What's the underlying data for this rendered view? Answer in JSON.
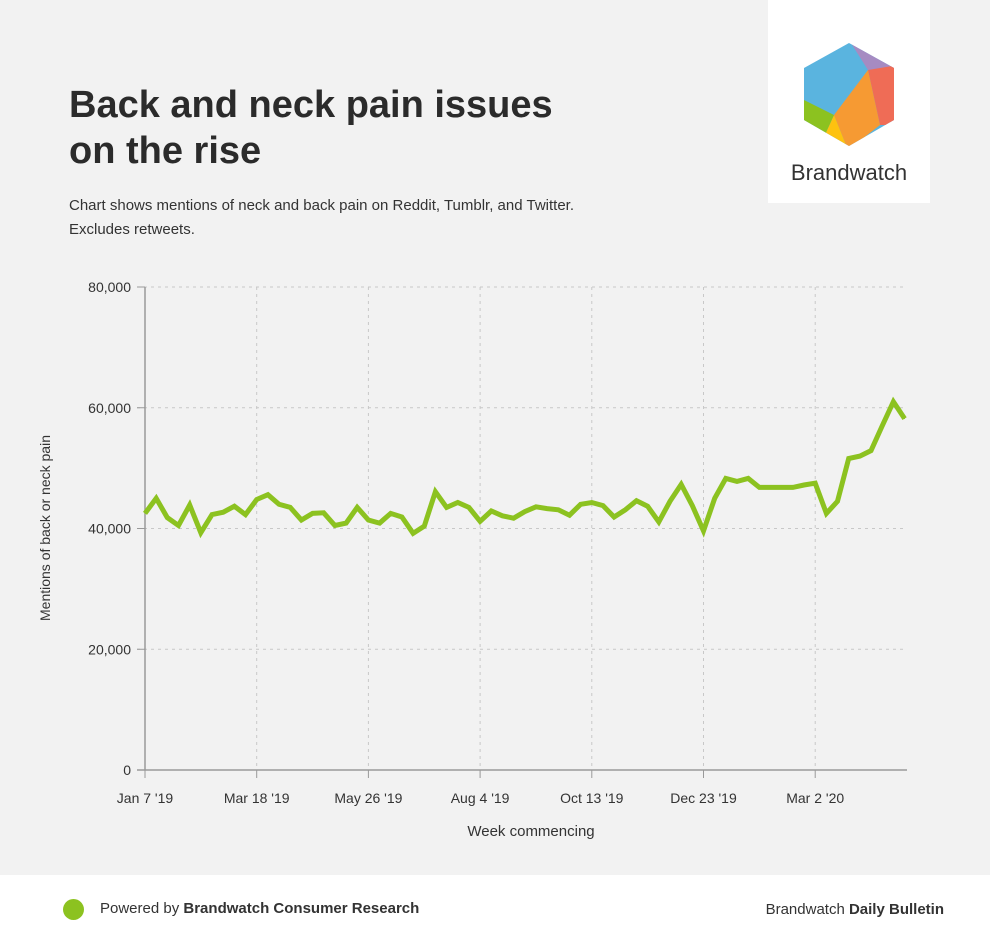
{
  "header": {
    "title_line1": "Back and neck pain issues",
    "title_line2": "on the rise",
    "subtitle_line1": "Chart shows mentions of neck and back pain on Reddit, Tumblr, and Twitter.",
    "subtitle_line2": "Excludes retweets."
  },
  "logo": {
    "text": "Brandwatch"
  },
  "footer": {
    "powered_prefix": "Powered by ",
    "powered_brand": "Brandwatch Consumer Research",
    "right_prefix": "Brandwatch ",
    "right_bold": "Daily Bulletin"
  },
  "colors": {
    "line": "#8cc220",
    "background": "#f2f2f2"
  },
  "chart_data": {
    "type": "line",
    "title": "Back and neck pain issues on the rise",
    "xlabel": "Week commencing",
    "ylabel": "Mentions of back or neck pain",
    "ylim": [
      0,
      80000
    ],
    "yticks": [
      0,
      20000,
      40000,
      60000,
      80000
    ],
    "ytick_labels": [
      "0",
      "20,000",
      "40,000",
      "60,000",
      "80,000"
    ],
    "xtick_weeks": [
      0,
      10,
      20,
      30,
      40,
      50,
      60
    ],
    "xtick_labels": [
      "Jan 7 '19",
      "Mar 18 '19",
      "May 26 '19",
      "Aug 4 '19",
      "Oct 13 '19",
      "Dec 23 '19",
      "Mar 2 '20"
    ],
    "grid": true,
    "series": [
      {
        "name": "Mentions",
        "values": [
          42500,
          45000,
          41800,
          40500,
          43900,
          39300,
          42300,
          42700,
          43700,
          42300,
          44800,
          45600,
          44000,
          43500,
          41400,
          42500,
          42600,
          40500,
          40900,
          43500,
          41400,
          40900,
          42500,
          41900,
          39200,
          40400,
          46100,
          43500,
          44300,
          43500,
          41200,
          42900,
          42100,
          41700,
          42800,
          43600,
          43300,
          43100,
          42200,
          44000,
          44300,
          43800,
          41900,
          43100,
          44600,
          43700,
          41100,
          44500,
          47300,
          43800,
          39600,
          45000,
          48300,
          47800,
          48300,
          46800,
          46800,
          46800,
          46800,
          47200,
          47500,
          42500,
          44500,
          51600,
          52000,
          52900,
          57000,
          61000,
          58200
        ]
      }
    ]
  }
}
